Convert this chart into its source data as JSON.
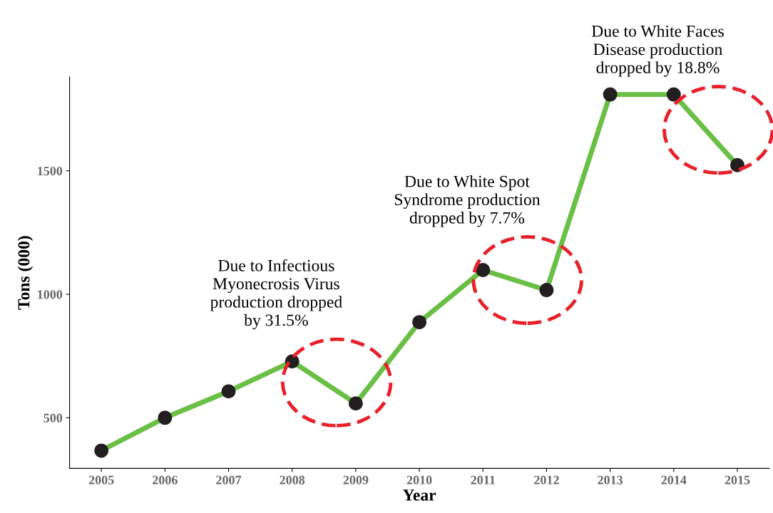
{
  "chart_data": {
    "type": "line",
    "xlabel": "Year",
    "ylabel": "Tons (000)",
    "x": [
      2005,
      2006,
      2007,
      2008,
      2009,
      2010,
      2011,
      2012,
      2013,
      2014,
      2015
    ],
    "series": [
      {
        "color": "#6abf45",
        "values": [
          367,
          500,
          607,
          728,
          558,
          887,
          1098,
          1017,
          1809,
          1809,
          1523
        ]
      }
    ],
    "marker": "circle",
    "line_style": "solid",
    "xlim": [
      2004.5,
      2015.5
    ],
    "xticks": [
      2005,
      2006,
      2007,
      2008,
      2009,
      2010,
      2011,
      2012,
      2013,
      2014,
      2015
    ],
    "ylim": [
      295,
      1880
    ],
    "yticks": [
      500,
      1000,
      1500
    ],
    "grid": false,
    "legend": false,
    "annotations": [
      "Due to Infectious\nMyonecrosis Virus\nproduction dropped\nby 31.5%",
      "Due to White Spot\nSyndrome production\ndropped by 7.7%",
      "Due to White Faces\nDisease production\ndropped by 18.8%"
    ]
  }
}
